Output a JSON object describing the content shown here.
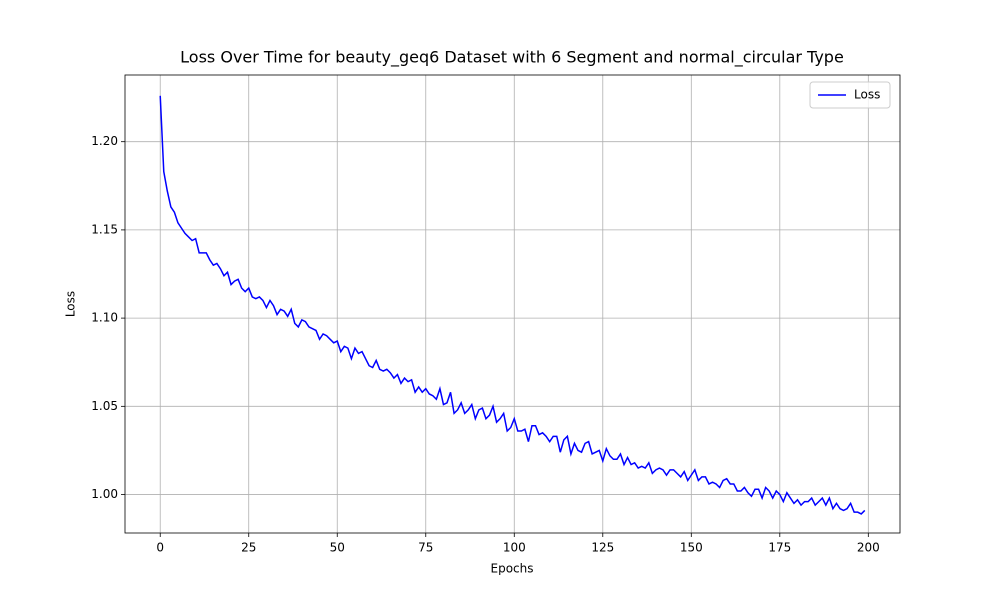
{
  "chart_data": {
    "type": "line",
    "title": "Loss Over Time for beauty_geq6 Dataset with 6 Segment and normal_circular Type",
    "x_label": "Epochs",
    "y_label": "Loss",
    "x": [
      0,
      1,
      2,
      3,
      4,
      5,
      6,
      7,
      8,
      9,
      10,
      11,
      12,
      13,
      14,
      15,
      16,
      17,
      18,
      19,
      20,
      21,
      22,
      23,
      24,
      25,
      26,
      27,
      28,
      29,
      30,
      31,
      32,
      33,
      34,
      35,
      36,
      37,
      38,
      39,
      40,
      41,
      42,
      43,
      44,
      45,
      46,
      47,
      48,
      49,
      50,
      51,
      52,
      53,
      54,
      55,
      56,
      57,
      58,
      59,
      60,
      61,
      62,
      63,
      64,
      65,
      66,
      67,
      68,
      69,
      70,
      71,
      72,
      73,
      74,
      75,
      76,
      77,
      78,
      79,
      80,
      81,
      82,
      83,
      84,
      85,
      86,
      87,
      88,
      89,
      90,
      91,
      92,
      93,
      94,
      95,
      96,
      97,
      98,
      99,
      100,
      101,
      102,
      103,
      104,
      105,
      106,
      107,
      108,
      109,
      110,
      111,
      112,
      113,
      114,
      115,
      116,
      117,
      118,
      119,
      120,
      121,
      122,
      123,
      124,
      125,
      126,
      127,
      128,
      129,
      130,
      131,
      132,
      133,
      134,
      135,
      136,
      137,
      138,
      139,
      140,
      141,
      142,
      143,
      144,
      145,
      146,
      147,
      148,
      149,
      150,
      151,
      152,
      153,
      154,
      155,
      156,
      157,
      158,
      159,
      160,
      161,
      162,
      163,
      164,
      165,
      166,
      167,
      168,
      169,
      170,
      171,
      172,
      173,
      174,
      175,
      176,
      177,
      178,
      179,
      180,
      181,
      182,
      183,
      184,
      185,
      186,
      187,
      188,
      189,
      190,
      191,
      192,
      193,
      194,
      195,
      196,
      197,
      198,
      199
    ],
    "series": [
      {
        "name": "Loss",
        "color": "#0000ff",
        "values": [
          1.226,
          1.183,
          1.172,
          1.163,
          1.16,
          1.154,
          1.151,
          1.148,
          1.146,
          1.144,
          1.145,
          1.137,
          1.137,
          1.137,
          1.133,
          1.13,
          1.131,
          1.128,
          1.124,
          1.126,
          1.119,
          1.121,
          1.122,
          1.117,
          1.115,
          1.117,
          1.112,
          1.111,
          1.112,
          1.11,
          1.106,
          1.11,
          1.107,
          1.102,
          1.105,
          1.104,
          1.101,
          1.105,
          1.097,
          1.095,
          1.099,
          1.098,
          1.095,
          1.094,
          1.093,
          1.088,
          1.091,
          1.09,
          1.088,
          1.086,
          1.087,
          1.081,
          1.084,
          1.083,
          1.077,
          1.083,
          1.08,
          1.081,
          1.077,
          1.073,
          1.072,
          1.076,
          1.071,
          1.07,
          1.071,
          1.069,
          1.066,
          1.068,
          1.063,
          1.066,
          1.064,
          1.065,
          1.058,
          1.061,
          1.058,
          1.06,
          1.057,
          1.056,
          1.054,
          1.06,
          1.051,
          1.052,
          1.058,
          1.046,
          1.048,
          1.052,
          1.046,
          1.048,
          1.051,
          1.043,
          1.048,
          1.049,
          1.043,
          1.045,
          1.05,
          1.041,
          1.043,
          1.046,
          1.036,
          1.038,
          1.043,
          1.036,
          1.036,
          1.037,
          1.03,
          1.039,
          1.039,
          1.034,
          1.035,
          1.033,
          1.03,
          1.033,
          1.033,
          1.024,
          1.031,
          1.033,
          1.023,
          1.029,
          1.025,
          1.024,
          1.029,
          1.03,
          1.023,
          1.024,
          1.025,
          1.019,
          1.026,
          1.022,
          1.02,
          1.02,
          1.023,
          1.017,
          1.021,
          1.017,
          1.018,
          1.015,
          1.016,
          1.015,
          1.018,
          1.012,
          1.014,
          1.015,
          1.014,
          1.011,
          1.014,
          1.014,
          1.012,
          1.01,
          1.013,
          1.008,
          1.011,
          1.014,
          1.008,
          1.01,
          1.01,
          1.006,
          1.007,
          1.006,
          1.004,
          1.008,
          1.009,
          1.006,
          1.006,
          1.002,
          1.002,
          1.004,
          1.001,
          0.999,
          1.003,
          1.003,
          0.998,
          1.004,
          1.002,
          0.998,
          1.002,
          1.0,
          0.996,
          1.001,
          0.998,
          0.995,
          0.997,
          0.994,
          0.996,
          0.996,
          0.998,
          0.994,
          0.996,
          0.998,
          0.994,
          0.998,
          0.992,
          0.995,
          0.992,
          0.991,
          0.992,
          0.995,
          0.99,
          0.99,
          0.989,
          0.991
        ]
      }
    ],
    "xlim": [
      -9.95,
      208.95
    ],
    "ylim": [
      0.9782,
      1.2378
    ],
    "xticks": [
      0,
      25,
      50,
      75,
      100,
      125,
      150,
      175,
      200
    ],
    "yticks": [
      {
        "value": 1,
        "label": "1.00"
      },
      1.05,
      {
        "value": 1.1,
        "label": "1.10"
      },
      1.15,
      {
        "value": 1.2,
        "label": "1.20"
      }
    ],
    "grid": true,
    "legend": "upper right"
  }
}
